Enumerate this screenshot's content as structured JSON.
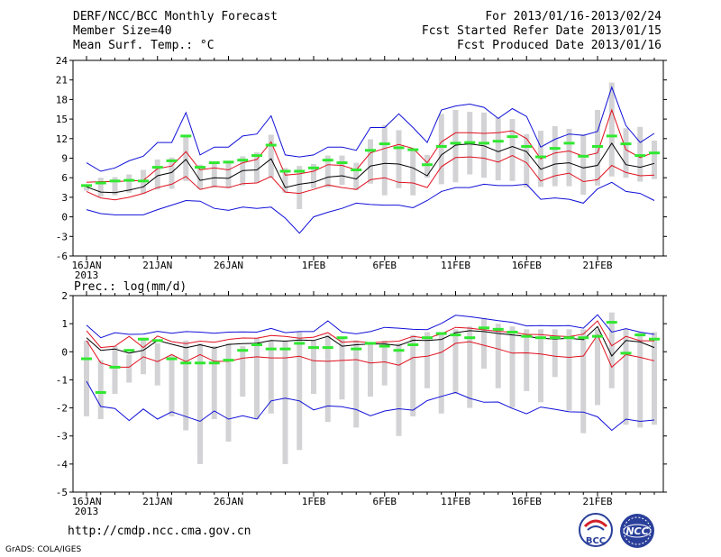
{
  "header": {
    "left_lines": [
      "DERF/NCC/BCC Monthly Forecast",
      "Member Size=40",
      "Mean Surf. Temp.: °C"
    ],
    "right_lines": [
      "For 2013/01/16-2013/02/24",
      "Fcst Started Refer Date 2013/01/15",
      "Fcst Produced Date 2013/01/16"
    ]
  },
  "footer": {
    "url": "http://cmdp.ncc.cma.gov.cn",
    "credit": "GrADS: COLA/IGES",
    "logo_left_text": "BCC",
    "logo_right_text": "NCC"
  },
  "colors": {
    "box": "#d3d3d6",
    "mean": "#000000",
    "spread": "#e0101e",
    "extreme": "#1010d8",
    "marker": "#30e830"
  },
  "chart_data": [
    {
      "type": "line",
      "title": "Mean Surf. Temp.: °C",
      "ylim": [
        -6,
        24
      ],
      "yticks": [
        -6,
        -3,
        0,
        3,
        6,
        9,
        12,
        15,
        18,
        21,
        24
      ],
      "x_days": 40,
      "xtick_labels": [
        {
          "day": 0,
          "label": "16JAN",
          "sub": "2013"
        },
        {
          "day": 5,
          "label": "21JAN"
        },
        {
          "day": 10,
          "label": "26JAN"
        },
        {
          "day": 16,
          "label": "1FEB"
        },
        {
          "day": 21,
          "label": "6FEB"
        },
        {
          "day": 26,
          "label": "11FEB"
        },
        {
          "day": 31,
          "label": "16FEB"
        },
        {
          "day": 36,
          "label": "21FEB"
        }
      ],
      "series": [
        {
          "name": "max",
          "role": "extreme",
          "values": [
            8.3,
            7.0,
            7.5,
            8.6,
            9.3,
            11.4,
            11.4,
            16.0,
            9.5,
            10.7,
            10.7,
            12.4,
            12.7,
            15.5,
            9.5,
            9.2,
            9.5,
            10.7,
            10.7,
            10.2,
            13.7,
            13.7,
            15.8,
            13.7,
            11.4,
            16.4,
            17.0,
            17.3,
            16.8,
            15.1,
            16.6,
            15.4,
            10.7,
            11.9,
            12.7,
            12.5,
            13.1,
            19.9,
            14.0,
            11.4,
            12.8
          ]
        },
        {
          "name": "upper",
          "role": "spread",
          "values": [
            5.3,
            5.4,
            5.4,
            5.5,
            5.6,
            7.4,
            7.8,
            10.0,
            7.2,
            7.5,
            7.2,
            8.3,
            8.8,
            11.5,
            6.4,
            6.6,
            7.0,
            8.0,
            7.9,
            7.2,
            9.8,
            10.5,
            11.1,
            10.5,
            8.3,
            11.5,
            12.9,
            12.9,
            12.8,
            12.9,
            13.2,
            12.0,
            8.9,
            9.8,
            10.1,
            9.3,
            9.8,
            16.4,
            10.3,
            9.1,
            9.9
          ]
        },
        {
          "name": "mean",
          "role": "mean",
          "values": [
            4.6,
            3.8,
            3.7,
            4.1,
            4.6,
            6.3,
            6.8,
            8.8,
            5.6,
            6.0,
            5.9,
            7.1,
            7.2,
            8.9,
            4.5,
            5.0,
            5.3,
            6.1,
            6.3,
            5.8,
            7.8,
            8.2,
            8.1,
            7.5,
            6.3,
            9.5,
            11.0,
            11.2,
            10.9,
            10.0,
            10.8,
            10.0,
            7.3,
            8.1,
            8.3,
            7.5,
            7.9,
            11.3,
            8.0,
            7.6,
            8.2
          ]
        },
        {
          "name": "lower",
          "role": "spread",
          "values": [
            3.9,
            2.9,
            2.6,
            3.0,
            3.6,
            4.5,
            5.0,
            6.2,
            4.2,
            4.7,
            4.5,
            5.1,
            5.2,
            6.2,
            3.8,
            3.6,
            4.2,
            4.9,
            4.5,
            4.2,
            5.7,
            6.0,
            5.3,
            5.2,
            4.5,
            7.7,
            9.1,
            9.2,
            9.0,
            8.4,
            9.4,
            8.3,
            5.5,
            6.3,
            6.7,
            5.4,
            5.7,
            7.9,
            6.8,
            6.3,
            6.4
          ]
        },
        {
          "name": "min",
          "role": "extreme",
          "values": [
            1.1,
            0.5,
            0.3,
            0.3,
            0.3,
            1.1,
            1.8,
            2.5,
            2.4,
            1.3,
            1.0,
            1.5,
            1.3,
            1.5,
            -0.2,
            -2.5,
            0.0,
            0.7,
            1.3,
            2.1,
            1.9,
            1.8,
            1.8,
            1.4,
            2.5,
            3.9,
            4.5,
            4.5,
            5.0,
            4.8,
            4.8,
            5.0,
            2.7,
            2.9,
            2.7,
            2.1,
            4.3,
            5.3,
            3.9,
            3.6,
            2.5
          ]
        }
      ],
      "boxes": [
        {
          "lo": 4.0,
          "hi": 5.0
        },
        {
          "lo": 3.1,
          "hi": 6.0
        },
        {
          "lo": 3.3,
          "hi": 6.1
        },
        {
          "lo": 3.7,
          "hi": 6.5
        },
        {
          "lo": 3.5,
          "hi": 7.2
        },
        {
          "lo": 4.2,
          "hi": 8.8
        },
        {
          "lo": 4.3,
          "hi": 9.1
        },
        {
          "lo": 5.5,
          "hi": 12.5
        },
        {
          "lo": 4.3,
          "hi": 8.0
        },
        {
          "lo": 4.5,
          "hi": 8.2
        },
        {
          "lo": 4.4,
          "hi": 8.6
        },
        {
          "lo": 4.8,
          "hi": 9.3
        },
        {
          "lo": 5.2,
          "hi": 9.9
        },
        {
          "lo": 6.0,
          "hi": 12.6
        },
        {
          "lo": 3.7,
          "hi": 7.5
        },
        {
          "lo": 1.2,
          "hi": 7.8
        },
        {
          "lo": 4.4,
          "hi": 8.1
        },
        {
          "lo": 4.5,
          "hi": 9.4
        },
        {
          "lo": 4.9,
          "hi": 9.4
        },
        {
          "lo": 4.1,
          "hi": 8.3
        },
        {
          "lo": 5.1,
          "hi": 11.9
        },
        {
          "lo": 3.3,
          "hi": 14.1
        },
        {
          "lo": 4.4,
          "hi": 13.3
        },
        {
          "lo": 3.3,
          "hi": 10.4
        },
        {
          "lo": 6.0,
          "hi": 9.5
        },
        {
          "lo": 5.0,
          "hi": 15.8
        },
        {
          "lo": 5.3,
          "hi": 16.4
        },
        {
          "lo": 6.5,
          "hi": 16.1
        },
        {
          "lo": 6.0,
          "hi": 16.0
        },
        {
          "lo": 5.6,
          "hi": 15.2
        },
        {
          "lo": 5.5,
          "hi": 15.0
        },
        {
          "lo": 4.5,
          "hi": 12.7
        },
        {
          "lo": 4.6,
          "hi": 13.2
        },
        {
          "lo": 4.7,
          "hi": 13.9
        },
        {
          "lo": 4.7,
          "hi": 13.5
        },
        {
          "lo": 3.4,
          "hi": 12.7
        },
        {
          "lo": 4.8,
          "hi": 16.4
        },
        {
          "lo": 6.2,
          "hi": 20.6
        },
        {
          "lo": 6.0,
          "hi": 13.6
        },
        {
          "lo": 5.4,
          "hi": 13.8
        },
        {
          "lo": 5.8,
          "hi": 11.7
        }
      ],
      "markers": [
        4.8,
        5.2,
        5.5,
        5.6,
        5.5,
        7.6,
        8.6,
        12.4,
        7.6,
        8.3,
        8.4,
        8.7,
        9.4,
        11.0,
        7.0,
        7.0,
        7.5,
        8.7,
        8.3,
        7.2,
        10.2,
        11.2,
        10.6,
        10.3,
        8.0,
        10.8,
        11.3,
        11.4,
        11.3,
        11.6,
        12.3,
        10.8,
        9.2,
        10.5,
        11.3,
        9.3,
        10.8,
        12.4,
        11.2,
        9.4,
        9.8
      ]
    },
    {
      "type": "line",
      "title": "Prec.: log(mm/d)",
      "ylim": [
        -5,
        2
      ],
      "yticks": [
        -5,
        -4,
        -3,
        -2,
        -1,
        0,
        1,
        2
      ],
      "x_days": 40,
      "xtick_labels": [
        {
          "day": 0,
          "label": "16JAN",
          "sub": "2013"
        },
        {
          "day": 5,
          "label": "21JAN"
        },
        {
          "day": 10,
          "label": "26JAN"
        },
        {
          "day": 16,
          "label": "1FEB"
        },
        {
          "day": 21,
          "label": "6FEB"
        },
        {
          "day": 26,
          "label": "11FEB"
        },
        {
          "day": 31,
          "label": "16FEB"
        },
        {
          "day": 36,
          "label": "21FEB"
        }
      ],
      "series": [
        {
          "name": "max",
          "role": "extreme",
          "values": [
            0.95,
            0.5,
            0.68,
            0.62,
            0.63,
            0.73,
            0.66,
            0.72,
            0.7,
            0.66,
            0.7,
            0.71,
            0.7,
            0.83,
            0.68,
            0.72,
            0.72,
            1.1,
            0.7,
            0.64,
            0.72,
            0.87,
            0.84,
            0.8,
            0.79,
            1.01,
            1.3,
            1.25,
            1.18,
            1.11,
            1.05,
            0.92,
            0.93,
            0.92,
            0.93,
            0.84,
            1.32,
            0.7,
            0.82,
            0.7,
            0.62
          ]
        },
        {
          "name": "upper",
          "role": "spread",
          "values": [
            0.75,
            0.15,
            0.2,
            0.55,
            0.15,
            0.56,
            0.36,
            0.29,
            0.38,
            0.34,
            0.44,
            0.49,
            0.48,
            0.58,
            0.55,
            0.48,
            0.52,
            0.68,
            0.34,
            0.37,
            0.32,
            0.35,
            0.38,
            0.55,
            0.48,
            0.64,
            0.87,
            0.84,
            0.78,
            0.73,
            0.69,
            0.62,
            0.61,
            0.56,
            0.54,
            0.63,
            1.1,
            0.21,
            0.55,
            0.39,
            0.39
          ]
        },
        {
          "name": "mean",
          "role": "mean",
          "values": [
            0.5,
            0.05,
            0.1,
            -0.05,
            0.05,
            0.4,
            0.27,
            0.14,
            0.25,
            0.13,
            0.26,
            0.29,
            0.3,
            0.4,
            0.38,
            0.42,
            0.4,
            0.55,
            0.2,
            0.25,
            0.28,
            0.28,
            0.22,
            0.41,
            0.4,
            0.44,
            0.68,
            0.75,
            0.72,
            0.65,
            0.6,
            0.55,
            0.48,
            0.45,
            0.48,
            0.43,
            0.9,
            -0.15,
            0.4,
            0.35,
            0.15
          ]
        },
        {
          "name": "lower",
          "role": "spread",
          "values": [
            0.4,
            -0.4,
            -0.55,
            -0.55,
            -0.18,
            -0.35,
            -0.1,
            -0.35,
            -0.1,
            -0.34,
            -0.34,
            -0.23,
            -0.18,
            -0.22,
            -0.22,
            -0.16,
            -0.32,
            -0.34,
            -0.31,
            -0.28,
            -0.4,
            -0.36,
            -0.48,
            -0.21,
            -0.16,
            -0.02,
            0.3,
            0.36,
            0.23,
            0.1,
            -0.05,
            -0.04,
            -0.08,
            -0.16,
            -0.2,
            -0.15,
            0.6,
            -0.55,
            -0.1,
            -0.2,
            -0.32
          ]
        },
        {
          "name": "min",
          "role": "extreme",
          "values": [
            -1.05,
            -1.95,
            -2.02,
            -2.45,
            -2.04,
            -2.4,
            -2.14,
            -2.31,
            -2.48,
            -2.11,
            -2.4,
            -2.28,
            -2.4,
            -1.75,
            -1.65,
            -1.75,
            -2.07,
            -1.93,
            -1.96,
            -2.06,
            -2.28,
            -2.11,
            -2.03,
            -2.08,
            -1.74,
            -1.59,
            -1.45,
            -1.66,
            -1.8,
            -1.79,
            -2.02,
            -2.21,
            -1.97,
            -2.05,
            -2.14,
            -2.15,
            -2.32,
            -2.8,
            -2.4,
            -2.48,
            -2.43
          ]
        }
      ],
      "boxes": [
        {
          "lo": -2.3,
          "hi": 0.4
        },
        {
          "lo": -2.4,
          "hi": -0.3
        },
        {
          "lo": -1.5,
          "hi": 0.2
        },
        {
          "lo": -1.1,
          "hi": -0.1
        },
        {
          "lo": -0.8,
          "hi": 0.5
        },
        {
          "lo": -1.2,
          "hi": 0.3
        },
        {
          "lo": -2.3,
          "hi": -0.1
        },
        {
          "lo": -2.8,
          "hi": 0.4
        },
        {
          "lo": -4.0,
          "hi": 0.3
        },
        {
          "lo": -2.4,
          "hi": 0.2
        },
        {
          "lo": -3.2,
          "hi": 0.3
        },
        {
          "lo": -1.6,
          "hi": 0.2
        },
        {
          "lo": -2.4,
          "hi": 0.5
        },
        {
          "lo": -2.2,
          "hi": 0.4
        },
        {
          "lo": -4.0,
          "hi": 0.4
        },
        {
          "lo": -3.5,
          "hi": 0.7
        },
        {
          "lo": -1.5,
          "hi": 0.4
        },
        {
          "lo": -2.5,
          "hi": 0.6
        },
        {
          "lo": -1.7,
          "hi": 0.5
        },
        {
          "lo": -2.7,
          "hi": 0.4
        },
        {
          "lo": -1.6,
          "hi": 0.3
        },
        {
          "lo": -1.2,
          "hi": 0.4
        },
        {
          "lo": -3.0,
          "hi": 0.3
        },
        {
          "lo": -2.3,
          "hi": 0.6
        },
        {
          "lo": -1.3,
          "hi": 0.7
        },
        {
          "lo": -2.2,
          "hi": 0.7
        },
        {
          "lo": -1.5,
          "hi": 0.8
        },
        {
          "lo": -2.0,
          "hi": 0.9
        },
        {
          "lo": -0.6,
          "hi": 1.2
        },
        {
          "lo": -1.3,
          "hi": 1.0
        },
        {
          "lo": -2.0,
          "hi": 0.9
        },
        {
          "lo": -1.4,
          "hi": 0.8
        },
        {
          "lo": -1.8,
          "hi": 0.8
        },
        {
          "lo": -0.9,
          "hi": 0.8
        },
        {
          "lo": -2.1,
          "hi": 0.8
        },
        {
          "lo": -2.9,
          "hi": 0.8
        },
        {
          "lo": -1.9,
          "hi": 0.8
        },
        {
          "lo": -1.3,
          "hi": 1.4
        },
        {
          "lo": -2.6,
          "hi": 0.8
        },
        {
          "lo": -2.7,
          "hi": 0.7
        },
        {
          "lo": -2.6,
          "hi": 0.7
        }
      ],
      "markers": [
        -0.25,
        -1.45,
        -0.55,
        0.05,
        0.45,
        0.4,
        -0.25,
        -0.4,
        -0.4,
        -0.4,
        -0.3,
        0.05,
        0.25,
        0.1,
        0.1,
        0.3,
        0.15,
        0.15,
        0.5,
        0.1,
        0.3,
        0.2,
        0.05,
        0.25,
        0.5,
        0.65,
        0.6,
        0.5,
        0.85,
        0.8,
        0.7,
        0.55,
        0.5,
        0.5,
        0.5,
        0.5,
        0.55,
        1.05,
        -0.05,
        0.6,
        0.45
      ]
    }
  ]
}
